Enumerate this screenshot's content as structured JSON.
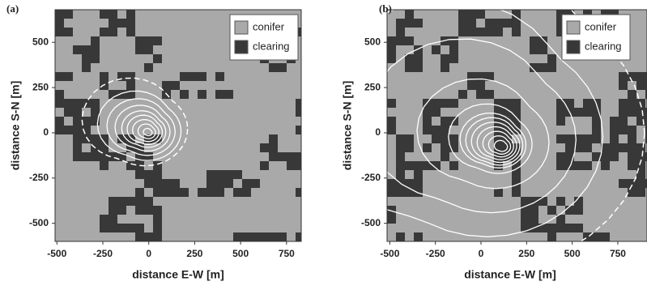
{
  "chart_data": [
    {
      "type": "map",
      "panel_label": "(a)",
      "xlabel": "distance E-W [m]",
      "ylabel": "distance S-N [m]",
      "xlim": [
        -510,
        830
      ],
      "ylim": [
        -600,
        680
      ],
      "xticks": [
        -500,
        -250,
        0,
        250,
        500,
        750
      ],
      "yticks": [
        -500,
        -250,
        0,
        250,
        500
      ],
      "legend": "upper right",
      "series": [
        {
          "name": "conifer",
          "color": "#a9a9a9"
        },
        {
          "name": "clearing",
          "color": "#383838"
        }
      ]
    },
    {
      "type": "map",
      "panel_label": "(b)",
      "xlabel": "distance E-W [m]",
      "ylabel": "distance S-N [m]",
      "xlim": [
        -515,
        910
      ],
      "ylim": [
        -600,
        680
      ],
      "xticks": [
        -500,
        -250,
        0,
        250,
        500,
        750
      ],
      "yticks": [
        -500,
        -250,
        0,
        250,
        500
      ],
      "legend": "upper right",
      "series": [
        {
          "name": "conifer",
          "color": "#a9a9a9"
        },
        {
          "name": "clearing",
          "color": "#383838"
        }
      ]
    }
  ]
}
